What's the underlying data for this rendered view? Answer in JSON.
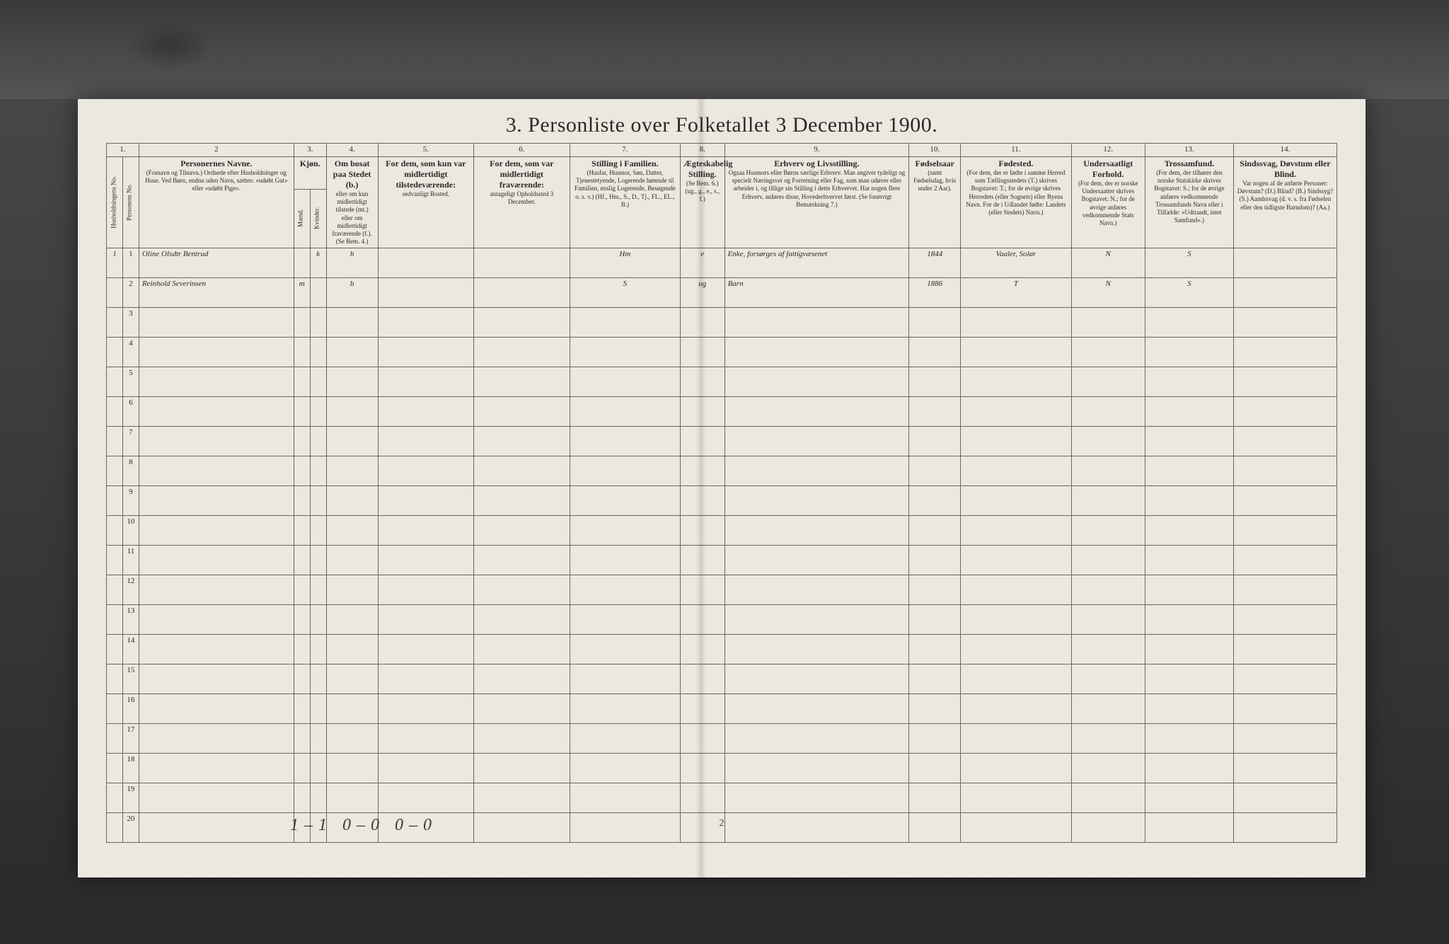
{
  "title": "3. Personliste over Folketallet 3 December 1900.",
  "columns": {
    "c1": {
      "num": "1."
    },
    "c2": {
      "num": "2",
      "title": "Personernes Navne.",
      "sub": "(Fornavn og Tilnavn.)\nOrdnede efter Husholdninger og Huse.\nVed Børn, endnu uden Navn, sættes: «udøbt Gut» eller «udøbt Pige»."
    },
    "c3": {
      "num": "3.",
      "title": "Kjøn.",
      "sub_m": "Mænd.",
      "sub_k": "Kvinder.",
      "mk": "m. k."
    },
    "c4": {
      "num": "4.",
      "title": "Om bosat paa Stedet (b.)",
      "sub": "eller om kun midlertidigt tilstede (mt.) eller om midlertidigt fraværende (f.). (Se Bem. 4.)"
    },
    "c5": {
      "num": "5.",
      "title": "For dem, som kun var midlertidigt tilstedeværende:",
      "sub": "sedvanligt Bosted."
    },
    "c6": {
      "num": "6.",
      "title": "For dem, som var midlertidigt fraværende:",
      "sub": "antageligt Opholdssted 3 December."
    },
    "c7": {
      "num": "7.",
      "title": "Stilling i Familien.",
      "sub": "(Husfar, Husmor, Søn, Datter, Tjenestetyende, Logerende hørende til Familien, enslig Logerende, Besøgende o. s. v.)\n(Hf., Hm., S., D., Tj., FL., EL., B.)"
    },
    "c8": {
      "num": "8.",
      "title": "Ægteskabelig Stilling.",
      "sub": "(Se Bem. 6.)\n(ug., g., e., s., f.)"
    },
    "c9": {
      "num": "9.",
      "title": "Erhverv og Livsstilling.",
      "sub": "Ogsaa Husmors eller Børns særlige Erhverv. Man angiver tydeligt og specielt Næringsvei og Forretning eller Fag, som man udøver eller arbeider i, og tillige sin Stilling i dette Erhvervet. Har nogen flere Erhverv, anføres disse, Hovederhvervet først.\n(Se forøvrigt Bemærkning 7.)"
    },
    "c10": {
      "num": "10.",
      "title": "Fødselsaar",
      "sub": "(samt Fødselsdag, hvis under 2 Aar)."
    },
    "c11": {
      "num": "11.",
      "title": "Fødested.",
      "sub": "(For dem, der er fødte i samme Herred som Tællingsstedets (T.) skrives Bogstavet: T.; for de øvrige skrives Herredets (eller Sognets) eller Byens Navn. For de i Udlandet fødte: Landets (eller Stedets) Navn.)"
    },
    "c12": {
      "num": "12.",
      "title": "Undersaatligt Forhold.",
      "sub": "(For dem, der er norske Undersaatter skrives Bogstavet: N.; for de øvrige anføres vedkommende Stats Navn.)"
    },
    "c13": {
      "num": "13.",
      "title": "Trossamfund.",
      "sub": "(For dem, der tilhører den norske Statskirke skrives Bogstavet: S.; for de øvrige anføres vedkommende Trossamfunds Navn eller i Tilfælde: «Udtraadt, intet Samfund».)"
    },
    "c14": {
      "num": "14.",
      "title": "Sindssvag, Døvstum eller Blind.",
      "sub": "Var nogen af de anførte Personer:\nDøvstum? (D.)\nBlind? (B.)\nSindssyg? (S.)\nAandssvag (d. v. s. fra Fødselen eller den tidligste Barndom)? (Aa.)"
    }
  },
  "row_header_a": "Husholdningens No.",
  "row_header_b": "Personens No.",
  "rows": [
    {
      "hnum": "1",
      "pnum": "1",
      "name": "Oline Olsdtr Bentrud",
      "sex_m": "",
      "sex_k": "k",
      "res": "b",
      "c5": "",
      "c6": "",
      "fam": "Hm",
      "mar": "e",
      "occ": "Enke, forsørges af fattigvæsenet",
      "year": "1844",
      "birthplace": "Vaaler, Solør",
      "nat": "N",
      "rel": "S",
      "dis": ""
    },
    {
      "hnum": "",
      "pnum": "2",
      "name": "Reinhold Severinsen",
      "sex_m": "m",
      "sex_k": "",
      "res": "b",
      "c5": "",
      "c6": "",
      "fam": "S",
      "mar": "ug",
      "occ": "Barn",
      "year": "1886",
      "birthplace": "T",
      "nat": "N",
      "rel": "S",
      "dis": ""
    }
  ],
  "row_labels": [
    "3",
    "4",
    "5",
    "6",
    "7",
    "8",
    "9",
    "10",
    "11",
    "12",
    "13",
    "14",
    "15",
    "16",
    "17",
    "18",
    "19",
    "20"
  ],
  "footer": "1–1   0–0   0–0",
  "page_number": "2",
  "col_widths": {
    "c1a": 22,
    "c1b": 22,
    "c2": 210,
    "c3a": 22,
    "c3b": 22,
    "c4": 70,
    "c5": 130,
    "c6": 130,
    "c7": 150,
    "c8": 60,
    "c9": 250,
    "c10": 70,
    "c11": 150,
    "c12": 100,
    "c13": 120,
    "c14": 140
  },
  "colors": {
    "page_bg": "#ebe8df",
    "frame_bg": "#1a1a1a",
    "border": "#666666",
    "text": "#2a2a2a",
    "handwriting": "#3a3a3a"
  }
}
